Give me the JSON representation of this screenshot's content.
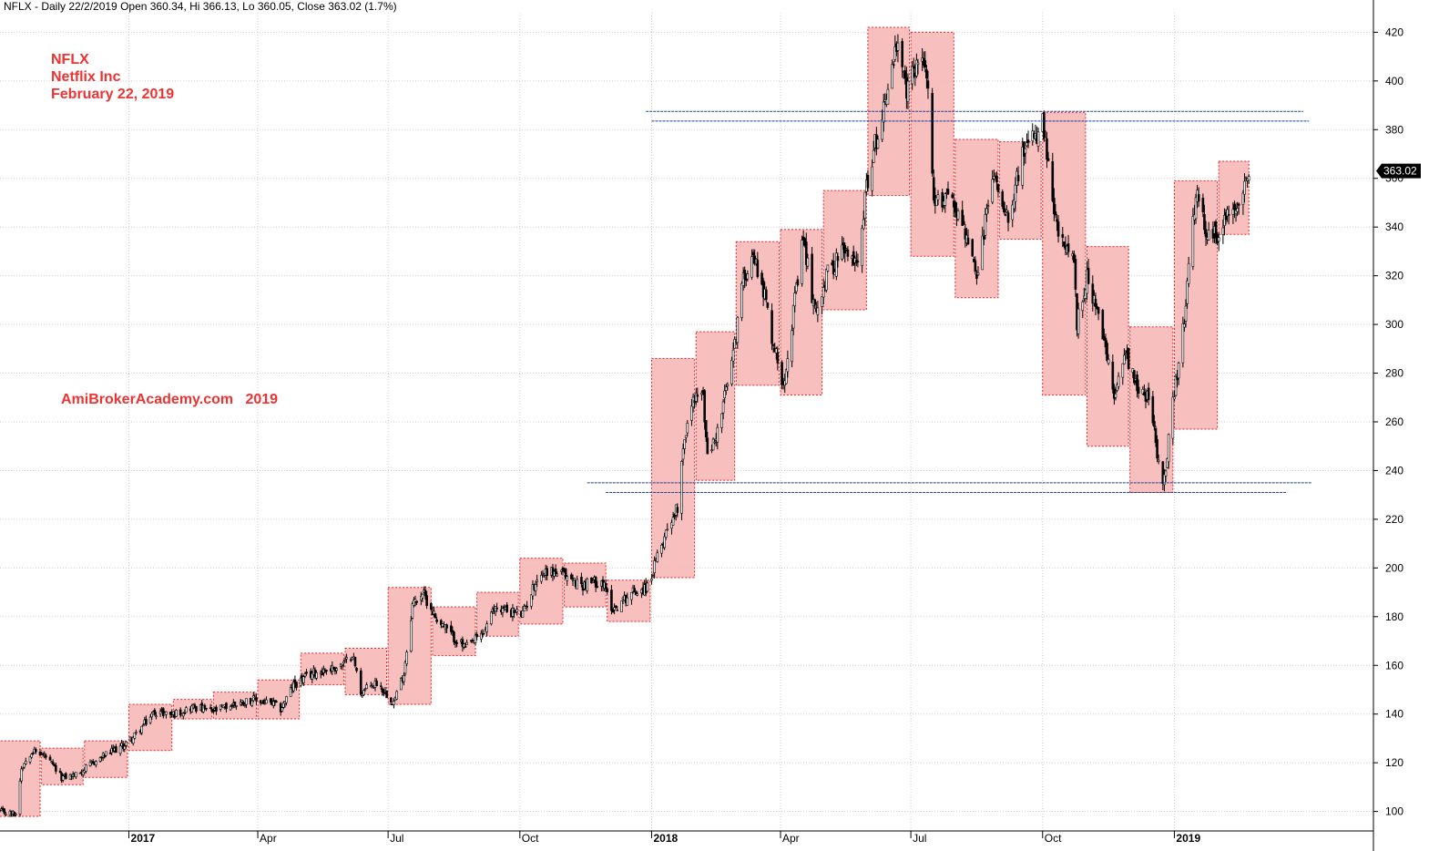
{
  "header": {
    "status_line": "NFLX - Daily 22/2/2019 Open 360.34, Hi 366.13, Lo 360.05, Close 363.02 (1.7%)"
  },
  "annotations": {
    "symbol": "NFLX",
    "company": "Netflix Inc",
    "date": "February 22, 2019",
    "watermark": "AmiBrokerAcademy.com   2019"
  },
  "colors": {
    "box_fill": "#f7b8b8",
    "box_border": "#ee2222",
    "candle": "#000000",
    "support_resistance": "#1f3f99",
    "grid": "#cfcfcf",
    "annotation_text": "#ee3333",
    "last_price_tag": "#000000"
  },
  "chart_data": {
    "type": "candlestick",
    "title": "NFLX - Daily 22/2/2019 Open 360.34, Hi 366.13, Lo 360.05, Close 363.02 (1.7%)",
    "symbol": "NFLX",
    "ylim": [
      92,
      428
    ],
    "y_ticks": [
      100,
      120,
      140,
      160,
      180,
      200,
      220,
      240,
      260,
      280,
      300,
      320,
      340,
      360,
      380,
      400,
      420
    ],
    "y_axis_side": "right",
    "grid": true,
    "x_range": [
      "2016-10-03",
      "2019-05-20"
    ],
    "x_ticks": [
      {
        "date": "2017-01-01",
        "label": "2017",
        "year": true
      },
      {
        "date": "2017-04-01",
        "label": "Apr",
        "year": false
      },
      {
        "date": "2017-07-01",
        "label": "Jul",
        "year": false
      },
      {
        "date": "2017-10-01",
        "label": "Oct",
        "year": false
      },
      {
        "date": "2018-01-01",
        "label": "2018",
        "year": true
      },
      {
        "date": "2018-04-01",
        "label": "Apr",
        "year": false
      },
      {
        "date": "2018-07-01",
        "label": "Jul",
        "year": false
      },
      {
        "date": "2018-10-01",
        "label": "Oct",
        "year": false
      },
      {
        "date": "2019-01-01",
        "label": "2019",
        "year": true
      }
    ],
    "last_close": 363.02,
    "last_close_label": "363.02",
    "price_path": [
      [
        "2016-10-03",
        100
      ],
      [
        "2016-10-14",
        99
      ],
      [
        "2016-10-18",
        118
      ],
      [
        "2016-10-25",
        125
      ],
      [
        "2016-11-03",
        123
      ],
      [
        "2016-11-15",
        114
      ],
      [
        "2016-11-25",
        115
      ],
      [
        "2016-12-05",
        119
      ],
      [
        "2016-12-15",
        123
      ],
      [
        "2016-12-28",
        127
      ],
      [
        "2017-01-05",
        131
      ],
      [
        "2017-01-19",
        141
      ],
      [
        "2017-02-01",
        140
      ],
      [
        "2017-02-15",
        143
      ],
      [
        "2017-03-01",
        141
      ],
      [
        "2017-03-15",
        144
      ],
      [
        "2017-03-28",
        146
      ],
      [
        "2017-04-12",
        144
      ],
      [
        "2017-04-17",
        142
      ],
      [
        "2017-04-26",
        152
      ],
      [
        "2017-05-10",
        157
      ],
      [
        "2017-05-25",
        159
      ],
      [
        "2017-06-01",
        161
      ],
      [
        "2017-06-06",
        165
      ],
      [
        "2017-06-12",
        149
      ],
      [
        "2017-06-23",
        153
      ],
      [
        "2017-07-05",
        145
      ],
      [
        "2017-07-12",
        157
      ],
      [
        "2017-07-18",
        185
      ],
      [
        "2017-07-25",
        190
      ],
      [
        "2017-08-03",
        180
      ],
      [
        "2017-08-15",
        172
      ],
      [
        "2017-08-24",
        167
      ],
      [
        "2017-09-05",
        173
      ],
      [
        "2017-09-14",
        184
      ],
      [
        "2017-09-25",
        182
      ],
      [
        "2017-10-03",
        181
      ],
      [
        "2017-10-13",
        196
      ],
      [
        "2017-10-20",
        199
      ],
      [
        "2017-11-01",
        197
      ],
      [
        "2017-11-13",
        193
      ],
      [
        "2017-11-27",
        195
      ],
      [
        "2017-12-05",
        183
      ],
      [
        "2017-12-18",
        190
      ],
      [
        "2017-12-29",
        192
      ],
      [
        "2018-01-05",
        204
      ],
      [
        "2018-01-12",
        217
      ],
      [
        "2018-01-19",
        225
      ],
      [
        "2018-01-23",
        251
      ],
      [
        "2018-01-31",
        271
      ],
      [
        "2018-02-06",
        270
      ],
      [
        "2018-02-09",
        245
      ],
      [
        "2018-02-16",
        256
      ],
      [
        "2018-02-27",
        287
      ],
      [
        "2018-03-05",
        316
      ],
      [
        "2018-03-12",
        330
      ],
      [
        "2018-03-20",
        315
      ],
      [
        "2018-03-27",
        292
      ],
      [
        "2018-04-03",
        276
      ],
      [
        "2018-04-10",
        305
      ],
      [
        "2018-04-17",
        335
      ],
      [
        "2018-04-25",
        305
      ],
      [
        "2018-05-03",
        320
      ],
      [
        "2018-05-14",
        330
      ],
      [
        "2018-05-24",
        325
      ],
      [
        "2018-06-01",
        360
      ],
      [
        "2018-06-12",
        390
      ],
      [
        "2018-06-21",
        414
      ],
      [
        "2018-06-28",
        395
      ],
      [
        "2018-07-06",
        410
      ],
      [
        "2018-07-12",
        405
      ],
      [
        "2018-07-17",
        348
      ],
      [
        "2018-07-27",
        355
      ],
      [
        "2018-08-07",
        340
      ],
      [
        "2018-08-16",
        318
      ],
      [
        "2018-08-27",
        362
      ],
      [
        "2018-09-07",
        345
      ],
      [
        "2018-09-17",
        370
      ],
      [
        "2018-09-24",
        375
      ],
      [
        "2018-10-01",
        382
      ],
      [
        "2018-10-09",
        345
      ],
      [
        "2018-10-16",
        330
      ],
      [
        "2018-10-22",
        333
      ],
      [
        "2018-10-25",
        300
      ],
      [
        "2018-11-01",
        320
      ],
      [
        "2018-11-12",
        295
      ],
      [
        "2018-11-20",
        270
      ],
      [
        "2018-11-27",
        290
      ],
      [
        "2018-12-06",
        275
      ],
      [
        "2018-12-14",
        270
      ],
      [
        "2018-12-24",
        233
      ],
      [
        "2018-12-31",
        267
      ],
      [
        "2019-01-07",
        297
      ],
      [
        "2019-01-16",
        353
      ],
      [
        "2019-01-25",
        335
      ],
      [
        "2019-02-01",
        338
      ],
      [
        "2019-02-07",
        344
      ],
      [
        "2019-02-15",
        352
      ],
      [
        "2019-02-22",
        363
      ]
    ],
    "monthly_boxes": [
      {
        "start": "2016-10-01",
        "end": "2016-10-31",
        "low": 98,
        "high": 129
      },
      {
        "start": "2016-11-01",
        "end": "2016-11-30",
        "low": 111,
        "high": 126
      },
      {
        "start": "2016-12-01",
        "end": "2016-12-31",
        "low": 114,
        "high": 129
      },
      {
        "start": "2017-01-01",
        "end": "2017-01-31",
        "low": 125,
        "high": 144
      },
      {
        "start": "2017-02-01",
        "end": "2017-02-28",
        "low": 138,
        "high": 146
      },
      {
        "start": "2017-03-01",
        "end": "2017-03-31",
        "low": 138,
        "high": 149
      },
      {
        "start": "2017-04-01",
        "end": "2017-04-30",
        "low": 138,
        "high": 154
      },
      {
        "start": "2017-05-01",
        "end": "2017-05-31",
        "low": 152,
        "high": 165
      },
      {
        "start": "2017-06-01",
        "end": "2017-06-30",
        "low": 148,
        "high": 167
      },
      {
        "start": "2017-07-01",
        "end": "2017-07-31",
        "low": 144,
        "high": 192
      },
      {
        "start": "2017-08-01",
        "end": "2017-08-31",
        "low": 164,
        "high": 184
      },
      {
        "start": "2017-09-01",
        "end": "2017-09-30",
        "low": 172,
        "high": 190
      },
      {
        "start": "2017-10-01",
        "end": "2017-10-31",
        "low": 177,
        "high": 204
      },
      {
        "start": "2017-11-01",
        "end": "2017-11-30",
        "low": 184,
        "high": 202
      },
      {
        "start": "2017-12-01",
        "end": "2017-12-31",
        "low": 178,
        "high": 195
      },
      {
        "start": "2018-01-01",
        "end": "2018-01-31",
        "low": 196,
        "high": 286
      },
      {
        "start": "2018-02-01",
        "end": "2018-02-28",
        "low": 236,
        "high": 297
      },
      {
        "start": "2018-03-01",
        "end": "2018-03-31",
        "low": 275,
        "high": 334
      },
      {
        "start": "2018-04-01",
        "end": "2018-04-30",
        "low": 271,
        "high": 339
      },
      {
        "start": "2018-05-01",
        "end": "2018-05-31",
        "low": 306,
        "high": 355
      },
      {
        "start": "2018-06-01",
        "end": "2018-06-30",
        "low": 353,
        "high": 422
      },
      {
        "start": "2018-07-01",
        "end": "2018-07-31",
        "low": 328,
        "high": 420
      },
      {
        "start": "2018-08-01",
        "end": "2018-08-31",
        "low": 311,
        "high": 376
      },
      {
        "start": "2018-09-01",
        "end": "2018-09-30",
        "low": 335,
        "high": 375
      },
      {
        "start": "2018-10-01",
        "end": "2018-10-31",
        "low": 271,
        "high": 387
      },
      {
        "start": "2018-11-01",
        "end": "2018-11-30",
        "low": 250,
        "high": 332
      },
      {
        "start": "2018-12-01",
        "end": "2018-12-31",
        "low": 231,
        "high": 299
      },
      {
        "start": "2019-01-01",
        "end": "2019-01-31",
        "low": 257,
        "high": 359
      },
      {
        "start": "2019-02-01",
        "end": "2019-02-22",
        "low": 337,
        "high": 367
      }
    ],
    "horizontal_lines": [
      {
        "price": 387.5,
        "from": "2017-12-28",
        "to": "2019-04-01"
      },
      {
        "price": 383.5,
        "from": "2018-01-01",
        "to": "2019-04-05"
      },
      {
        "price": 235,
        "from": "2017-11-17",
        "to": "2019-04-07"
      },
      {
        "price": 231,
        "from": "2017-11-30",
        "to": "2019-03-20"
      }
    ]
  }
}
